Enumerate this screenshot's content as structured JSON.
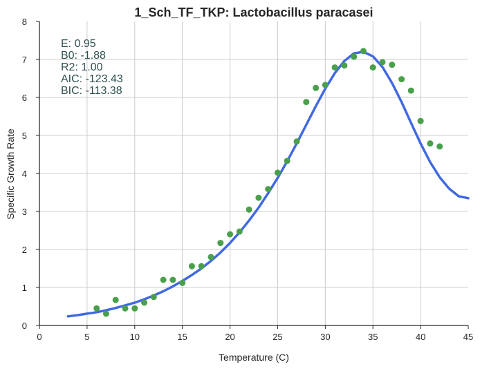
{
  "chart_data": {
    "type": "scatter",
    "title": "1_Sch_TF_TKP: Lactobacillus paracasei",
    "xlabel": "Temperature (C)",
    "ylabel": "Specific Growth Rate",
    "xlim": [
      0,
      45
    ],
    "ylim": [
      0,
      8
    ],
    "xticks": [
      "0",
      "5",
      "10",
      "15",
      "20",
      "25",
      "30",
      "35",
      "40",
      "45"
    ],
    "yticks": [
      "0",
      "1",
      "2",
      "3",
      "4",
      "5",
      "6",
      "7",
      "8"
    ],
    "grid": true,
    "colors": {
      "points": "#4aa04a",
      "curve": "#4169e1"
    },
    "annotations": [
      "E:  0.95",
      "B0:  -1.88",
      "R2:  1.00",
      "AIC: -123.43",
      "BIC: -113.38"
    ],
    "points": {
      "x": [
        6,
        7,
        8,
        9,
        10,
        11,
        12,
        13,
        14,
        15,
        16,
        17,
        18,
        19,
        20,
        21,
        22,
        23,
        24,
        25,
        26,
        27,
        28,
        29,
        30,
        31,
        32,
        33,
        34,
        35,
        36,
        37,
        38,
        39,
        40,
        41,
        42
      ],
      "y": [
        0.45,
        0.31,
        0.67,
        0.45,
        0.45,
        0.6,
        0.75,
        1.2,
        1.2,
        1.12,
        1.56,
        1.56,
        1.8,
        2.17,
        2.4,
        2.47,
        3.05,
        3.36,
        3.59,
        4.02,
        4.33,
        4.84,
        5.88,
        6.25,
        6.33,
        6.79,
        6.84,
        7.07,
        7.22,
        6.79,
        6.93,
        6.86,
        6.48,
        6.18,
        5.38,
        4.79,
        4.71
      ]
    },
    "fit": {
      "x": [
        3,
        4,
        5,
        6,
        7,
        8,
        9,
        10,
        11,
        12,
        13,
        14,
        15,
        16,
        17,
        18,
        19,
        20,
        21,
        22,
        23,
        24,
        25,
        26,
        27,
        28,
        29,
        30,
        31,
        32,
        33,
        34,
        35,
        36,
        37,
        38,
        39,
        40,
        41,
        42,
        43,
        44,
        45
      ],
      "y": [
        0.24,
        0.27,
        0.31,
        0.35,
        0.4,
        0.46,
        0.53,
        0.6,
        0.69,
        0.79,
        0.9,
        1.03,
        1.17,
        1.33,
        1.5,
        1.7,
        1.92,
        2.17,
        2.45,
        2.76,
        3.1,
        3.48,
        3.88,
        4.32,
        4.79,
        5.28,
        5.77,
        6.23,
        6.64,
        6.96,
        7.16,
        7.2,
        7.08,
        6.8,
        6.38,
        5.88,
        5.33,
        4.79,
        4.3,
        3.9,
        3.6,
        3.4,
        3.35
      ]
    }
  }
}
